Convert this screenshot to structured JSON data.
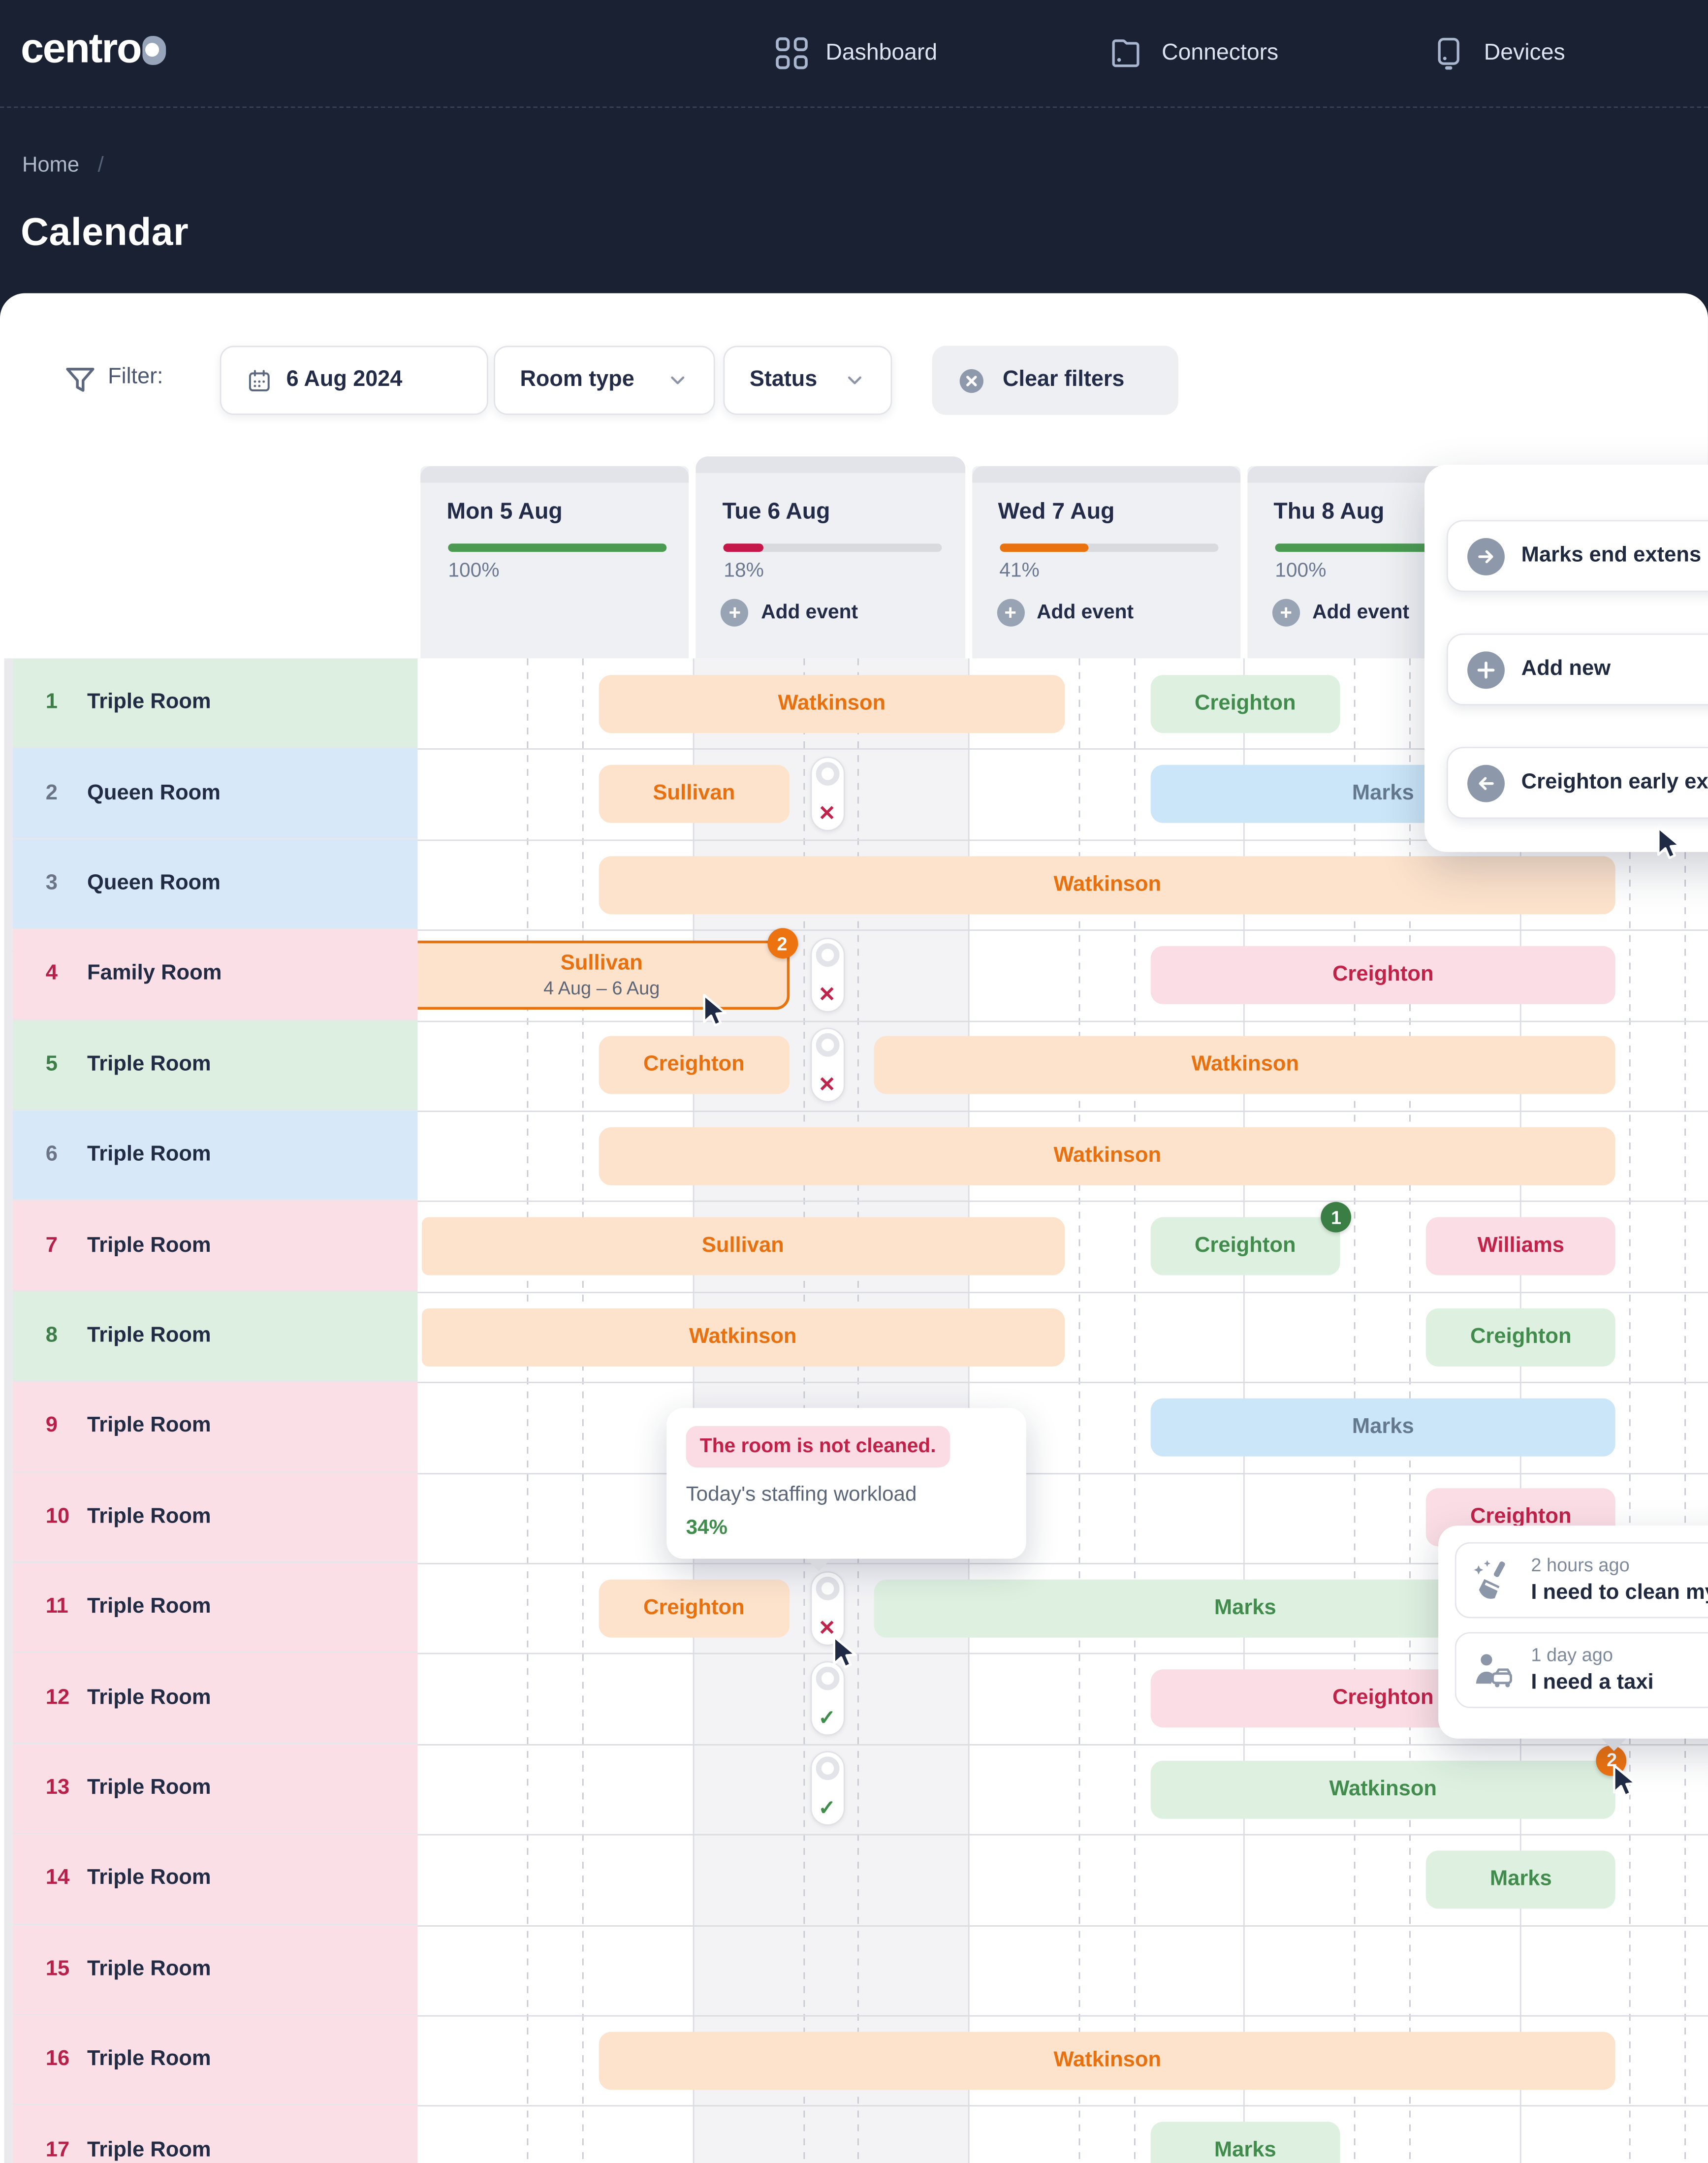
{
  "nav": {
    "brand": "centro",
    "items": [
      {
        "label": "Dashboard",
        "icon": "dashboard-grid-icon"
      },
      {
        "label": "Connectors",
        "icon": "connectors-folder-icon"
      },
      {
        "label": "Devices",
        "icon": "devices-icon"
      }
    ]
  },
  "breadcrumb": {
    "home": "Home",
    "separator": "/"
  },
  "page": {
    "title": "Calendar"
  },
  "filters": {
    "label": "Filter:",
    "date_value": "6 Aug 2024",
    "room_type_label": "Room type",
    "status_label": "Status",
    "clear_label": "Clear filters"
  },
  "calendar": {
    "add_event_label": "Add event",
    "days": [
      {
        "label": "Mon 5 Aug",
        "percent": 100,
        "percent_label": "100%",
        "bar_color": "#4a9b51",
        "add_event": false,
        "selected": false
      },
      {
        "label": "Tue 6 Aug",
        "percent": 18,
        "percent_label": "18%",
        "bar_color": "#c5174a",
        "add_event": true,
        "selected": true
      },
      {
        "label": "Wed 7 Aug",
        "percent": 41,
        "percent_label": "41%",
        "bar_color": "#ea720e",
        "add_event": true,
        "selected": false
      },
      {
        "label": "Thu 8 Aug",
        "percent": 100,
        "percent_label": "100%",
        "bar_color": "#4a9b51",
        "add_event": true,
        "selected": false
      }
    ],
    "rooms": [
      {
        "num": "1",
        "name": "Triple Room",
        "color": "green"
      },
      {
        "num": "2",
        "name": "Queen Room",
        "color": "blue"
      },
      {
        "num": "3",
        "name": "Queen Room",
        "color": "blue"
      },
      {
        "num": "4",
        "name": "Family Room",
        "color": "pink"
      },
      {
        "num": "5",
        "name": "Triple Room",
        "color": "green"
      },
      {
        "num": "6",
        "name": "Triple Room",
        "color": "blue"
      },
      {
        "num": "7",
        "name": "Triple Room",
        "color": "pink"
      },
      {
        "num": "8",
        "name": "Triple Room",
        "color": "green"
      },
      {
        "num": "9",
        "name": "Triple Room",
        "color": "pink"
      },
      {
        "num": "10",
        "name": "Triple Room",
        "color": "pink"
      },
      {
        "num": "11",
        "name": "Triple Room",
        "color": "pink"
      },
      {
        "num": "12",
        "name": "Triple Room",
        "color": "pink"
      },
      {
        "num": "13",
        "name": "Triple Room",
        "color": "pink"
      },
      {
        "num": "14",
        "name": "Triple Room",
        "color": "pink"
      },
      {
        "num": "15",
        "name": "Triple Room",
        "color": "pink"
      },
      {
        "num": "16",
        "name": "Triple Room",
        "color": "pink"
      },
      {
        "num": "17",
        "name": "Triple Room",
        "color": "pink"
      }
    ],
    "bookings": [
      {
        "row": 1,
        "guest": "Watkinson",
        "style": "orange",
        "from": 0.66,
        "to": 2.35
      },
      {
        "row": 1,
        "guest": "Creighton",
        "style": "green",
        "from": 2.66,
        "to": 3.35
      },
      {
        "row": 2,
        "guest": "Sullivan",
        "style": "orange",
        "from": 0.66,
        "to": 1.35
      },
      {
        "row": 2,
        "guest": "Marks",
        "style": "blue",
        "from": 2.66,
        "to": 4.35
      },
      {
        "row": 3,
        "guest": "Watkinson",
        "style": "orange",
        "from": 0.66,
        "to": 4.35
      },
      {
        "row": 4,
        "guest": "Sullivan",
        "style": "orange",
        "from": "edge",
        "to": 1.35,
        "selected": true,
        "date_range": "4 Aug – 6 Aug",
        "badge": {
          "value": "2",
          "color": "orange"
        }
      },
      {
        "row": 4,
        "guest": "Creighton",
        "style": "pink",
        "from": 2.66,
        "to": 4.35
      },
      {
        "row": 5,
        "guest": "Creighton",
        "style": "orange",
        "from": 0.66,
        "to": 1.35
      },
      {
        "row": 5,
        "guest": "Watkinson",
        "style": "orange",
        "from": 1.66,
        "to": 4.35
      },
      {
        "row": 6,
        "guest": "Watkinson",
        "style": "orange",
        "from": 0.66,
        "to": 4.35
      },
      {
        "row": 7,
        "guest": "Sullivan",
        "style": "orange",
        "from": "edge",
        "to": 2.35
      },
      {
        "row": 7,
        "guest": "Creighton",
        "style": "green",
        "from": 2.66,
        "to": 3.35,
        "badge": {
          "value": "1",
          "color": "green"
        }
      },
      {
        "row": 7,
        "guest": "Williams",
        "style": "pink",
        "from": 3.66,
        "to": 4.35
      },
      {
        "row": 8,
        "guest": "Watkinson",
        "style": "orange",
        "from": "edge",
        "to": 2.35
      },
      {
        "row": 8,
        "guest": "Creighton",
        "style": "green",
        "from": 3.66,
        "to": 4.35
      },
      {
        "row": 9,
        "guest": "Marks",
        "style": "blue",
        "from": 2.66,
        "to": 4.35
      },
      {
        "row": 10,
        "guest": "Creighton",
        "style": "pink",
        "from": 3.66,
        "to": 4.35
      },
      {
        "row": 11,
        "guest": "Creighton",
        "style": "orange",
        "from": 0.66,
        "to": 1.35
      },
      {
        "row": 11,
        "guest": "Marks",
        "style": "green",
        "from": 1.66,
        "to": 4.35
      },
      {
        "row": 12,
        "guest": "Creighton",
        "style": "pink",
        "from": 2.66,
        "to": 4.35
      },
      {
        "row": 13,
        "guest": "Watkinson",
        "style": "green",
        "from": 2.66,
        "to": 4.35,
        "badge": {
          "value": "2",
          "color": "orange"
        }
      },
      {
        "row": 14,
        "guest": "Marks",
        "style": "green",
        "from": 3.66,
        "to": 4.35
      },
      {
        "row": 16,
        "guest": "Watkinson",
        "style": "orange",
        "from": 0.66,
        "to": 4.35
      },
      {
        "row": 17,
        "guest": "Marks",
        "style": "green",
        "from": 2.66,
        "to": 3.35
      }
    ],
    "toggles": [
      {
        "row": 2,
        "state": "x"
      },
      {
        "row": 4,
        "state": "x"
      },
      {
        "row": 5,
        "state": "x"
      },
      {
        "row": 11,
        "state": "x"
      },
      {
        "row": 12,
        "state": "check"
      },
      {
        "row": 13,
        "state": "check"
      }
    ],
    "icons": {
      "x_glyph": "✕",
      "check_glyph": "✓",
      "plus_glyph": "+"
    }
  },
  "tooltip": {
    "alert": "The room is not cleaned.",
    "caption": "Today's staffing workload",
    "value": "34%"
  },
  "messages_popup": {
    "items": [
      {
        "time": "2 hours ago",
        "text": "I need to clean my",
        "icon": "broom-icon"
      },
      {
        "time": "1 day ago",
        "text": "I need a taxi",
        "icon": "guest-taxi-icon"
      }
    ]
  },
  "actions_popup": {
    "items": [
      {
        "label": "Marks end extens",
        "icon": "arrow-right-icon"
      },
      {
        "label": "Add new",
        "icon": "plus-icon"
      },
      {
        "label": "Creighton early ex",
        "icon": "arrow-left-icon"
      }
    ]
  },
  "colors": {
    "topbar_bg": "#1a2133",
    "brand_mark": "#97a4ba",
    "progress_green": "#4a9b51",
    "progress_red": "#c5174a",
    "progress_orange": "#ea720e",
    "bar_orange_bg": "#fde3cc",
    "bar_orange_text": "#e8700f",
    "bar_green_bg": "#def1e0",
    "bar_green_text": "#418c4c",
    "bar_blue_bg": "#cbe6f8",
    "bar_blue_text": "#64788f",
    "bar_pink_bg": "#fbdee5",
    "bar_pink_text": "#c22148",
    "badge_orange": "#ed7210",
    "badge_green": "#3a7d45"
  }
}
